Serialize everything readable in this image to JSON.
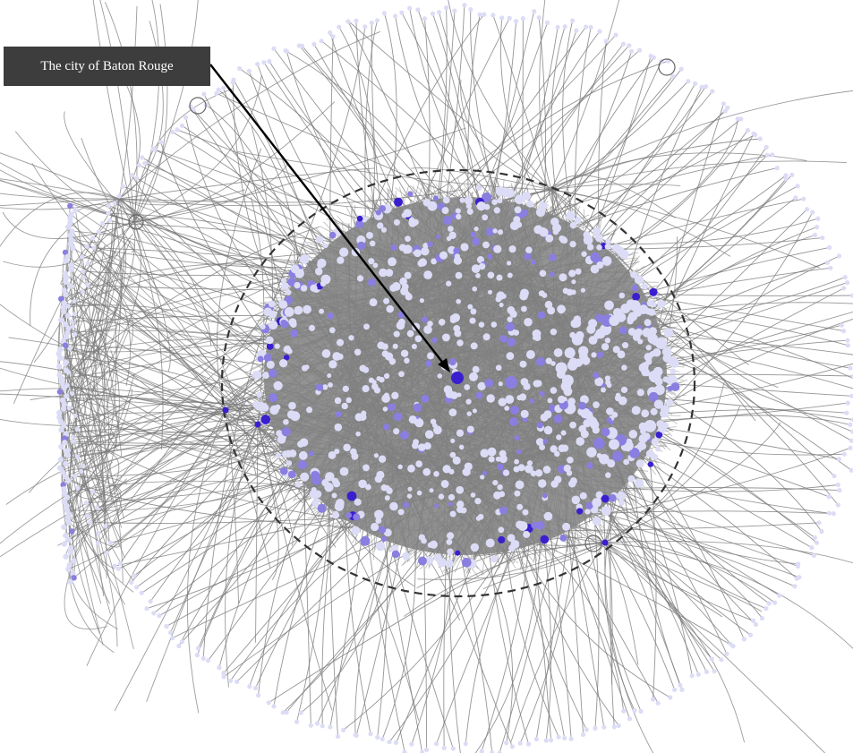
{
  "annotation": {
    "label": "The city of Baton Rouge"
  },
  "colors": {
    "background": "#ffffff",
    "edge": "#7a7a7a",
    "node_light": "#dcdcf6",
    "node_mid": "#8a7ee0",
    "node_dark": "#3a1fcf",
    "arrow": "#000000",
    "boundary": "#333333",
    "callout_bg": "#3d3d3d"
  },
  "legend_visible": false
}
